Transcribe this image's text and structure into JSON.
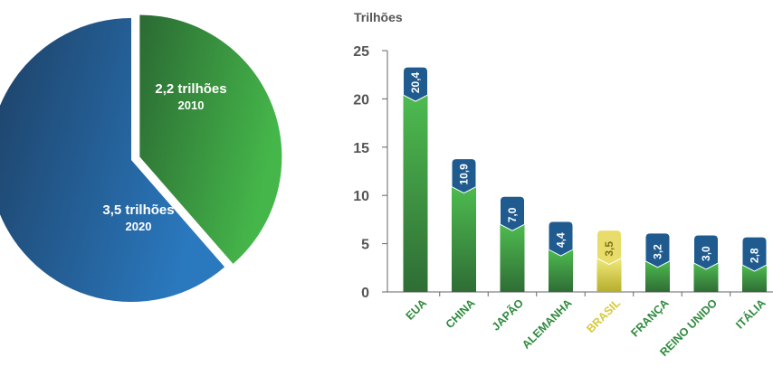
{
  "colors": {
    "pie_blue_dark": "#1d3f63",
    "pie_blue_light": "#2a78be",
    "pie_green_dark": "#2b6a33",
    "pie_green_light": "#45b74a",
    "bar_green_dark": "#2f6d35",
    "bar_green_light": "#4dbb4f",
    "bar_highlight_dark": "#b6ae2c",
    "bar_highlight_light": "#f0e97a",
    "badge_blue": "#1f5b8f",
    "badge_yellow": "#e8dd6a",
    "axis": "#666666",
    "category_green": "#2e8a3d",
    "category_highlight": "#d6c93a"
  },
  "chart_data": [
    {
      "type": "pie",
      "slices": [
        {
          "value_label": "3,5 trilhões",
          "year": "2020",
          "value": 3.5
        },
        {
          "value_label": "2,2 trilhões",
          "year": "2010",
          "value": 2.2,
          "exploded": true
        }
      ]
    },
    {
      "type": "bar",
      "ylabel": "Trilhões",
      "ylim": [
        0,
        25
      ],
      "yticks": [
        0,
        5,
        10,
        15,
        20,
        25
      ],
      "categories": [
        "EUA",
        "CHINA",
        "JAPÃO",
        "ALEMANHA",
        "BRASIL",
        "FRANÇA",
        "REINO UNIDO",
        "ITÁLIA"
      ],
      "values": [
        20.4,
        10.9,
        7.0,
        4.4,
        3.5,
        3.2,
        3.0,
        2.8
      ],
      "value_labels": [
        "20,4",
        "10,9",
        "7,0",
        "4,4",
        "3,5",
        "3,2",
        "3,0",
        "2,8"
      ],
      "highlight": "BRASIL",
      "grid": false,
      "legend": "none"
    }
  ]
}
